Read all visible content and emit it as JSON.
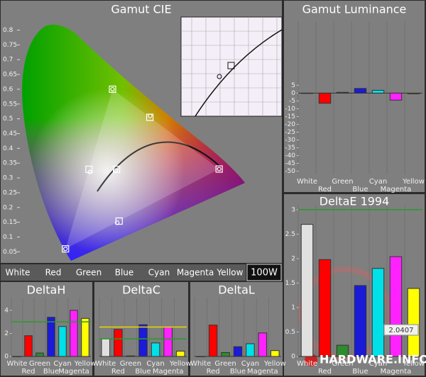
{
  "chart_data": [
    {
      "type": "cie",
      "title": "Gamut CIE",
      "xlim": [
        0,
        0.84
      ],
      "ylim": [
        0.01,
        0.83
      ],
      "yticks": [
        0.05,
        0.1,
        0.15,
        0.2,
        0.25,
        0.3,
        0.35,
        0.4,
        0.45,
        0.5,
        0.55,
        0.6,
        0.65,
        0.7,
        0.75,
        0.8
      ],
      "categories": [
        "White",
        "Red",
        "Green",
        "Blue",
        "Cyan",
        "Magenta",
        "Yellow"
      ],
      "mode_label": "100W",
      "series": [
        {
          "marker": "square",
          "color": "#ffffff",
          "x": [
            0.3127,
            0.64,
            0.3,
            0.15,
            0.225,
            0.321,
            0.419
          ],
          "values": [
            0.329,
            0.33,
            0.6,
            0.06,
            0.329,
            0.154,
            0.505
          ]
        },
        {
          "marker": "circle",
          "color": "#ffffff",
          "x": [
            0.31,
            0.64,
            0.3,
            0.15,
            0.228,
            0.315,
            0.42
          ],
          "values": [
            0.325,
            0.33,
            0.6,
            0.06,
            0.32,
            0.148,
            0.51
          ]
        }
      ]
    },
    {
      "type": "bar",
      "title": "Gamut Luminance",
      "categories": [
        "White",
        "Red",
        "Green",
        "Blue",
        "Cyan",
        "Magenta",
        "Yellow"
      ],
      "values": [
        0,
        -6.5,
        0.5,
        3,
        1.8,
        -4.5,
        -0.5
      ],
      "colors": [
        "#e0e0e0",
        "#ff0000",
        "#2e8b2e",
        "#1a1ad8",
        "#00e0e8",
        "#ff22ff",
        "#ffff00"
      ],
      "ylim": [
        -52,
        46
      ],
      "yticks": [
        5,
        0,
        -5,
        -10,
        -15,
        -20,
        -25,
        -30,
        -35,
        -40,
        -45,
        -50
      ]
    },
    {
      "type": "bar",
      "title": "DeltaE 1994",
      "categories": [
        "White",
        "Red",
        "Green",
        "Blue",
        "Cyan",
        "Magenta",
        "Yellow"
      ],
      "values": [
        2.7,
        1.98,
        0.23,
        1.45,
        1.8,
        2.04,
        1.39
      ],
      "colors": [
        "#e0e0e0",
        "#ff0000",
        "#2e8b2e",
        "#1a1ad8",
        "#00e0e8",
        "#ff22ff",
        "#ffff00"
      ],
      "ylim": [
        0,
        3.1
      ],
      "yticks": [
        0,
        0.5,
        1,
        1.5,
        2,
        2.5,
        3
      ],
      "reference_lines": [
        {
          "value": 3,
          "color": "#2a9a2a"
        }
      ],
      "annotation": "2.0407",
      "watermark": "HARDWARE.INFO"
    },
    {
      "type": "bar",
      "title": "DeltaH",
      "categories": [
        "White",
        "Red",
        "Green",
        "Blue",
        "Cyan",
        "Magenta",
        "Yellow"
      ],
      "values": [
        0,
        1.8,
        0.3,
        3.4,
        2.6,
        4.0,
        3.3
      ],
      "colors": [
        "#e0e0e0",
        "#ff0000",
        "#2e8b2e",
        "#1a1ad8",
        "#00e0e8",
        "#ff22ff",
        "#ffff00"
      ],
      "ylim": [
        0,
        5.1
      ],
      "yticks": [
        0,
        2,
        4
      ],
      "reference_lines": [
        {
          "value": 3,
          "color": "#2a9a2a"
        }
      ]
    },
    {
      "type": "bar",
      "title": "DeltaC",
      "categories": [
        "White",
        "Red",
        "Green",
        "Blue",
        "Cyan",
        "Magenta",
        "Yellow"
      ],
      "values": [
        3,
        4.6,
        0.1,
        5.4,
        2.3,
        5,
        0.9
      ],
      "colors": [
        "#e0e0e0",
        "#ff0000",
        "#2e8b2e",
        "#1a1ad8",
        "#00e0e8",
        "#ff22ff",
        "#ffff00"
      ],
      "ylim": [
        0,
        10
      ],
      "reference_lines": [
        {
          "value": 5,
          "color": "#e8d800"
        },
        {
          "value": 3,
          "color": "#2a9a2a"
        }
      ]
    },
    {
      "type": "bar",
      "title": "DeltaL",
      "categories": [
        "White",
        "Red",
        "Green",
        "Blue",
        "Cyan",
        "Magenta",
        "Yellow"
      ],
      "values": [
        0,
        1.6,
        0.2,
        0.5,
        0.65,
        1.2,
        0.3
      ],
      "colors": [
        "#e0e0e0",
        "#ff0000",
        "#2e8b2e",
        "#1a1ad8",
        "#00e0e8",
        "#ff22ff",
        "#ffff00"
      ],
      "ylim": [
        0,
        3
      ]
    }
  ]
}
